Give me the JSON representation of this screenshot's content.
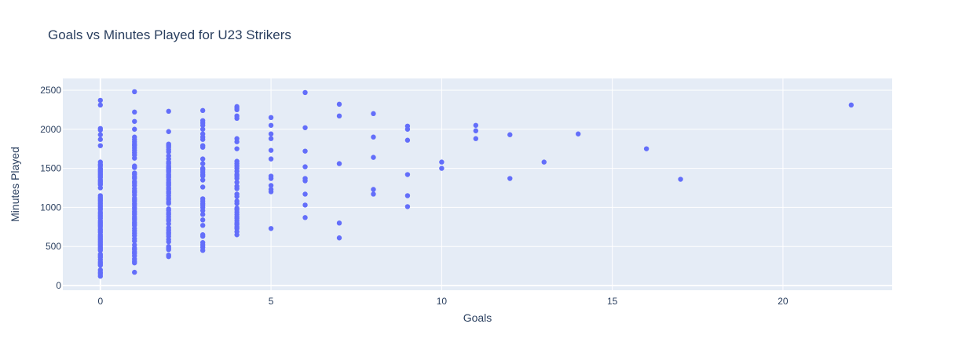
{
  "chart_data": {
    "type": "scatter",
    "title": "Goals vs Minutes Played for U23 Strikers",
    "xlabel": "Goals",
    "ylabel": "Minutes Played",
    "xlim": [
      -1.1,
      23.2
    ],
    "ylim": [
      -60,
      2650
    ],
    "x_ticks": [
      0,
      5,
      10,
      15,
      20
    ],
    "y_ticks": [
      0,
      500,
      1000,
      1500,
      2000,
      2500
    ],
    "grid": true,
    "legend": "none",
    "colors": {
      "marker": "#636efa",
      "plot_bg": "#e5ecf6",
      "grid": "#ffffff",
      "text": "#2a3f5f"
    },
    "series": [
      {
        "points": [
          [
            0,
            2370
          ],
          [
            0,
            2310
          ],
          [
            0,
            2010
          ],
          [
            0,
            1990
          ],
          [
            0,
            1930
          ],
          [
            0,
            1870
          ],
          [
            0,
            1790
          ],
          [
            0,
            1580
          ],
          [
            0,
            1550
          ],
          [
            0,
            1530
          ],
          [
            0,
            1500
          ],
          [
            0,
            1480
          ],
          [
            0,
            1460
          ],
          [
            0,
            1440
          ],
          [
            0,
            1420
          ],
          [
            0,
            1400
          ],
          [
            0,
            1380
          ],
          [
            0,
            1350
          ],
          [
            0,
            1330
          ],
          [
            0,
            1310
          ],
          [
            0,
            1290
          ],
          [
            0,
            1250
          ],
          [
            0,
            1150
          ],
          [
            0,
            1130
          ],
          [
            0,
            1110
          ],
          [
            0,
            1090
          ],
          [
            0,
            1070
          ],
          [
            0,
            1050
          ],
          [
            0,
            1030
          ],
          [
            0,
            1010
          ],
          [
            0,
            990
          ],
          [
            0,
            970
          ],
          [
            0,
            940
          ],
          [
            0,
            920
          ],
          [
            0,
            900
          ],
          [
            0,
            880
          ],
          [
            0,
            860
          ],
          [
            0,
            830
          ],
          [
            0,
            810
          ],
          [
            0,
            790
          ],
          [
            0,
            770
          ],
          [
            0,
            750
          ],
          [
            0,
            720
          ],
          [
            0,
            700
          ],
          [
            0,
            680
          ],
          [
            0,
            650
          ],
          [
            0,
            630
          ],
          [
            0,
            610
          ],
          [
            0,
            590
          ],
          [
            0,
            570
          ],
          [
            0,
            550
          ],
          [
            0,
            530
          ],
          [
            0,
            510
          ],
          [
            0,
            490
          ],
          [
            0,
            470
          ],
          [
            0,
            450
          ],
          [
            0,
            400
          ],
          [
            0,
            380
          ],
          [
            0,
            360
          ],
          [
            0,
            330
          ],
          [
            0,
            300
          ],
          [
            0,
            280
          ],
          [
            0,
            260
          ],
          [
            0,
            200
          ],
          [
            0,
            170
          ],
          [
            0,
            150
          ],
          [
            0,
            120
          ],
          [
            1,
            2480
          ],
          [
            1,
            2220
          ],
          [
            1,
            2100
          ],
          [
            1,
            2000
          ],
          [
            1,
            1900
          ],
          [
            1,
            1870
          ],
          [
            1,
            1840
          ],
          [
            1,
            1810
          ],
          [
            1,
            1790
          ],
          [
            1,
            1760
          ],
          [
            1,
            1730
          ],
          [
            1,
            1700
          ],
          [
            1,
            1670
          ],
          [
            1,
            1630
          ],
          [
            1,
            1530
          ],
          [
            1,
            1510
          ],
          [
            1,
            1440
          ],
          [
            1,
            1420
          ],
          [
            1,
            1390
          ],
          [
            1,
            1370
          ],
          [
            1,
            1330
          ],
          [
            1,
            1310
          ],
          [
            1,
            1280
          ],
          [
            1,
            1240
          ],
          [
            1,
            1210
          ],
          [
            1,
            1190
          ],
          [
            1,
            1160
          ],
          [
            1,
            1120
          ],
          [
            1,
            1100
          ],
          [
            1,
            1080
          ],
          [
            1,
            1050
          ],
          [
            1,
            1030
          ],
          [
            1,
            1000
          ],
          [
            1,
            980
          ],
          [
            1,
            950
          ],
          [
            1,
            930
          ],
          [
            1,
            910
          ],
          [
            1,
            880
          ],
          [
            1,
            860
          ],
          [
            1,
            840
          ],
          [
            1,
            810
          ],
          [
            1,
            790
          ],
          [
            1,
            770
          ],
          [
            1,
            730
          ],
          [
            1,
            700
          ],
          [
            1,
            670
          ],
          [
            1,
            640
          ],
          [
            1,
            600
          ],
          [
            1,
            570
          ],
          [
            1,
            520
          ],
          [
            1,
            480
          ],
          [
            1,
            460
          ],
          [
            1,
            430
          ],
          [
            1,
            410
          ],
          [
            1,
            380
          ],
          [
            1,
            340
          ],
          [
            1,
            310
          ],
          [
            1,
            290
          ],
          [
            1,
            170
          ],
          [
            2,
            2230
          ],
          [
            2,
            1970
          ],
          [
            2,
            1810
          ],
          [
            2,
            1790
          ],
          [
            2,
            1770
          ],
          [
            2,
            1740
          ],
          [
            2,
            1710
          ],
          [
            2,
            1660
          ],
          [
            2,
            1620
          ],
          [
            2,
            1580
          ],
          [
            2,
            1560
          ],
          [
            2,
            1530
          ],
          [
            2,
            1510
          ],
          [
            2,
            1490
          ],
          [
            2,
            1470
          ],
          [
            2,
            1450
          ],
          [
            2,
            1420
          ],
          [
            2,
            1400
          ],
          [
            2,
            1380
          ],
          [
            2,
            1350
          ],
          [
            2,
            1320
          ],
          [
            2,
            1300
          ],
          [
            2,
            1280
          ],
          [
            2,
            1250
          ],
          [
            2,
            1230
          ],
          [
            2,
            1200
          ],
          [
            2,
            1180
          ],
          [
            2,
            1150
          ],
          [
            2,
            1120
          ],
          [
            2,
            1100
          ],
          [
            2,
            1070
          ],
          [
            2,
            1050
          ],
          [
            2,
            980
          ],
          [
            2,
            960
          ],
          [
            2,
            930
          ],
          [
            2,
            910
          ],
          [
            2,
            880
          ],
          [
            2,
            850
          ],
          [
            2,
            830
          ],
          [
            2,
            790
          ],
          [
            2,
            740
          ],
          [
            2,
            710
          ],
          [
            2,
            680
          ],
          [
            2,
            660
          ],
          [
            2,
            630
          ],
          [
            2,
            590
          ],
          [
            2,
            560
          ],
          [
            2,
            500
          ],
          [
            2,
            480
          ],
          [
            2,
            460
          ],
          [
            2,
            390
          ],
          [
            2,
            370
          ],
          [
            3,
            2240
          ],
          [
            3,
            2110
          ],
          [
            3,
            2080
          ],
          [
            3,
            2050
          ],
          [
            3,
            2000
          ],
          [
            3,
            1940
          ],
          [
            3,
            1900
          ],
          [
            3,
            1870
          ],
          [
            3,
            1790
          ],
          [
            3,
            1770
          ],
          [
            3,
            1620
          ],
          [
            3,
            1560
          ],
          [
            3,
            1500
          ],
          [
            3,
            1480
          ],
          [
            3,
            1450
          ],
          [
            3,
            1420
          ],
          [
            3,
            1400
          ],
          [
            3,
            1350
          ],
          [
            3,
            1260
          ],
          [
            3,
            1110
          ],
          [
            3,
            1080
          ],
          [
            3,
            1050
          ],
          [
            3,
            1030
          ],
          [
            3,
            1000
          ],
          [
            3,
            960
          ],
          [
            3,
            910
          ],
          [
            3,
            840
          ],
          [
            3,
            770
          ],
          [
            3,
            650
          ],
          [
            3,
            630
          ],
          [
            3,
            550
          ],
          [
            3,
            520
          ],
          [
            3,
            490
          ],
          [
            3,
            450
          ],
          [
            4,
            2290
          ],
          [
            4,
            2270
          ],
          [
            4,
            2250
          ],
          [
            4,
            2170
          ],
          [
            4,
            2140
          ],
          [
            4,
            1880
          ],
          [
            4,
            1840
          ],
          [
            4,
            1750
          ],
          [
            4,
            1590
          ],
          [
            4,
            1560
          ],
          [
            4,
            1530
          ],
          [
            4,
            1500
          ],
          [
            4,
            1460
          ],
          [
            4,
            1420
          ],
          [
            4,
            1400
          ],
          [
            4,
            1370
          ],
          [
            4,
            1320
          ],
          [
            4,
            1270
          ],
          [
            4,
            1240
          ],
          [
            4,
            1170
          ],
          [
            4,
            1140
          ],
          [
            4,
            1080
          ],
          [
            4,
            1050
          ],
          [
            4,
            990
          ],
          [
            4,
            970
          ],
          [
            4,
            940
          ],
          [
            4,
            910
          ],
          [
            4,
            880
          ],
          [
            4,
            860
          ],
          [
            4,
            830
          ],
          [
            4,
            800
          ],
          [
            4,
            780
          ],
          [
            4,
            750
          ],
          [
            4,
            730
          ],
          [
            4,
            690
          ],
          [
            4,
            650
          ],
          [
            5,
            2150
          ],
          [
            5,
            2050
          ],
          [
            5,
            1940
          ],
          [
            5,
            1880
          ],
          [
            5,
            1730
          ],
          [
            5,
            1620
          ],
          [
            5,
            1400
          ],
          [
            5,
            1370
          ],
          [
            5,
            1280
          ],
          [
            5,
            1230
          ],
          [
            5,
            1200
          ],
          [
            5,
            730
          ],
          [
            6,
            2470
          ],
          [
            6,
            2020
          ],
          [
            6,
            1720
          ],
          [
            6,
            1520
          ],
          [
            6,
            1370
          ],
          [
            6,
            1340
          ],
          [
            6,
            1170
          ],
          [
            6,
            1030
          ],
          [
            6,
            870
          ],
          [
            7,
            2320
          ],
          [
            7,
            2170
          ],
          [
            7,
            1560
          ],
          [
            7,
            800
          ],
          [
            7,
            610
          ],
          [
            8,
            2200
          ],
          [
            8,
            1900
          ],
          [
            8,
            1640
          ],
          [
            8,
            1230
          ],
          [
            8,
            1170
          ],
          [
            9,
            2040
          ],
          [
            9,
            2000
          ],
          [
            9,
            1860
          ],
          [
            9,
            1420
          ],
          [
            9,
            1150
          ],
          [
            9,
            1010
          ],
          [
            10,
            1580
          ],
          [
            10,
            1500
          ],
          [
            11,
            2050
          ],
          [
            11,
            1980
          ],
          [
            11,
            1880
          ],
          [
            12,
            1930
          ],
          [
            12,
            1370
          ],
          [
            13,
            1580
          ],
          [
            14,
            1940
          ],
          [
            16,
            1750
          ],
          [
            17,
            1360
          ],
          [
            22,
            2310
          ]
        ]
      }
    ]
  }
}
